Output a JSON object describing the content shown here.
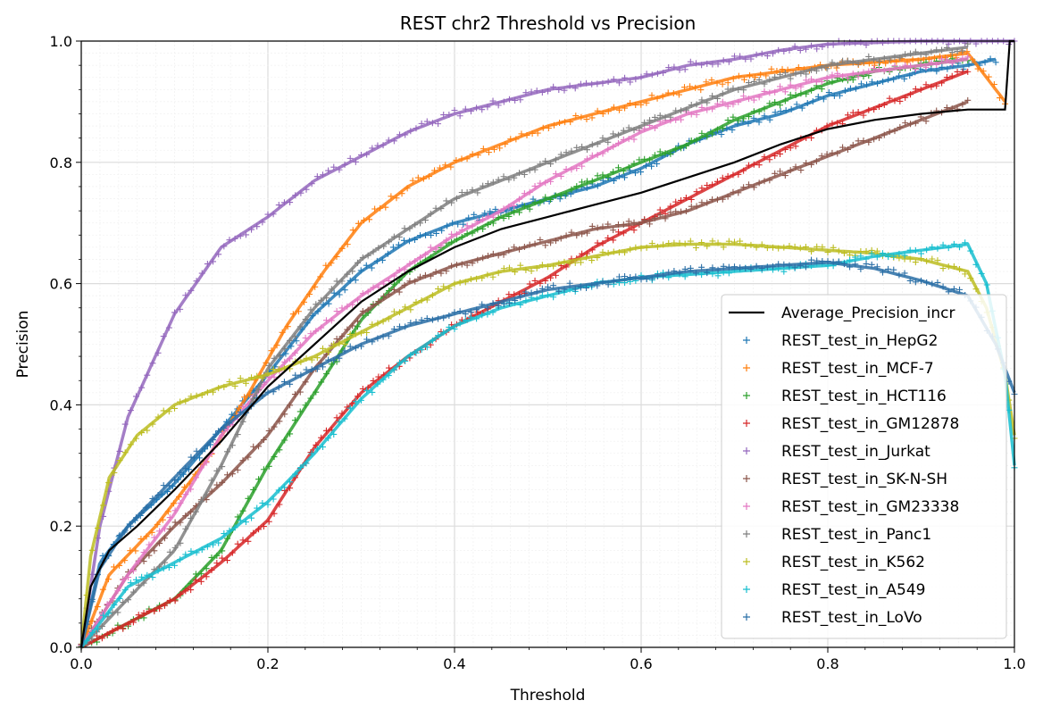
{
  "chart_data": {
    "type": "line",
    "title": "REST chr2 Threshold vs Precision",
    "xlabel": "Threshold",
    "ylabel": "Precision",
    "xlim": [
      0,
      1
    ],
    "ylim": [
      0,
      1
    ],
    "xticks": [
      "0.0",
      "0.2",
      "0.4",
      "0.6",
      "0.8",
      "1.0"
    ],
    "yticks": [
      "0.0",
      "0.2",
      "0.4",
      "0.6",
      "0.8",
      "1.0"
    ],
    "grid": true,
    "legend_position": "lower-right",
    "series": [
      {
        "name": "Average_Precision_incr",
        "color": "#000000",
        "style": "line",
        "x": [
          0,
          0.01,
          0.03,
          0.06,
          0.1,
          0.15,
          0.2,
          0.25,
          0.3,
          0.35,
          0.4,
          0.45,
          0.5,
          0.55,
          0.6,
          0.65,
          0.7,
          0.75,
          0.8,
          0.85,
          0.9,
          0.95,
          0.99,
          0.995,
          1.0
        ],
        "y": [
          0,
          0.1,
          0.16,
          0.2,
          0.26,
          0.34,
          0.43,
          0.5,
          0.57,
          0.62,
          0.66,
          0.69,
          0.71,
          0.73,
          0.75,
          0.775,
          0.8,
          0.83,
          0.855,
          0.87,
          0.88,
          0.887,
          0.887,
          1.0,
          1.0
        ]
      },
      {
        "name": "REST_test_in_HepG2",
        "color": "#1f77b4",
        "style": "marker",
        "x": [
          0,
          0.02,
          0.05,
          0.1,
          0.15,
          0.2,
          0.25,
          0.3,
          0.35,
          0.4,
          0.45,
          0.5,
          0.55,
          0.6,
          0.65,
          0.7,
          0.75,
          0.8,
          0.85,
          0.9,
          0.95,
          0.98
        ],
        "y": [
          0,
          0.14,
          0.2,
          0.27,
          0.36,
          0.45,
          0.55,
          0.62,
          0.67,
          0.7,
          0.72,
          0.74,
          0.76,
          0.79,
          0.83,
          0.86,
          0.88,
          0.91,
          0.93,
          0.95,
          0.96,
          0.97
        ]
      },
      {
        "name": "REST_test_in_MCF-7",
        "color": "#ff7f0e",
        "style": "marker",
        "x": [
          0,
          0.03,
          0.08,
          0.13,
          0.18,
          0.22,
          0.26,
          0.3,
          0.35,
          0.4,
          0.45,
          0.5,
          0.55,
          0.6,
          0.65,
          0.7,
          0.8,
          0.9,
          0.95,
          0.99
        ],
        "y": [
          0,
          0.12,
          0.2,
          0.3,
          0.42,
          0.53,
          0.62,
          0.7,
          0.76,
          0.8,
          0.83,
          0.86,
          0.88,
          0.9,
          0.92,
          0.94,
          0.96,
          0.97,
          0.98,
          0.9
        ]
      },
      {
        "name": "REST_test_in_HCT116",
        "color": "#2ca02c",
        "style": "marker",
        "x": [
          0,
          0.05,
          0.1,
          0.15,
          0.2,
          0.25,
          0.3,
          0.35,
          0.4,
          0.45,
          0.5,
          0.55,
          0.6,
          0.65,
          0.7,
          0.75,
          0.8,
          0.85,
          0.9,
          0.95
        ],
        "y": [
          0,
          0.04,
          0.08,
          0.16,
          0.3,
          0.42,
          0.54,
          0.62,
          0.67,
          0.71,
          0.74,
          0.77,
          0.8,
          0.83,
          0.87,
          0.9,
          0.93,
          0.95,
          0.96,
          0.97
        ]
      },
      {
        "name": "REST_test_in_GM12878",
        "color": "#d62728",
        "style": "marker",
        "x": [
          0,
          0.05,
          0.1,
          0.15,
          0.2,
          0.25,
          0.3,
          0.35,
          0.4,
          0.45,
          0.5,
          0.55,
          0.6,
          0.65,
          0.7,
          0.75,
          0.8,
          0.85,
          0.9,
          0.95
        ],
        "y": [
          0,
          0.04,
          0.08,
          0.14,
          0.21,
          0.33,
          0.42,
          0.48,
          0.53,
          0.57,
          0.61,
          0.66,
          0.7,
          0.74,
          0.78,
          0.82,
          0.86,
          0.89,
          0.92,
          0.95
        ]
      },
      {
        "name": "REST_test_in_Jurkat",
        "color": "#9467bd",
        "style": "marker",
        "x": [
          0,
          0.02,
          0.05,
          0.1,
          0.15,
          0.2,
          0.25,
          0.3,
          0.35,
          0.4,
          0.45,
          0.5,
          0.55,
          0.6,
          0.65,
          0.7,
          0.75,
          0.8,
          0.9,
          1.0
        ],
        "y": [
          0,
          0.2,
          0.38,
          0.55,
          0.66,
          0.71,
          0.77,
          0.81,
          0.85,
          0.88,
          0.9,
          0.92,
          0.93,
          0.94,
          0.96,
          0.97,
          0.985,
          0.995,
          1.0,
          1.0
        ]
      },
      {
        "name": "REST_test_in_SK-N-SH",
        "color": "#8c564b",
        "style": "marker",
        "x": [
          0,
          0.05,
          0.1,
          0.15,
          0.2,
          0.25,
          0.3,
          0.35,
          0.4,
          0.45,
          0.5,
          0.55,
          0.6,
          0.65,
          0.7,
          0.75,
          0.8,
          0.85,
          0.9,
          0.95
        ],
        "y": [
          0,
          0.12,
          0.2,
          0.27,
          0.35,
          0.46,
          0.55,
          0.6,
          0.63,
          0.65,
          0.67,
          0.69,
          0.7,
          0.72,
          0.75,
          0.78,
          0.81,
          0.84,
          0.87,
          0.9
        ]
      },
      {
        "name": "REST_test_in_GM23338",
        "color": "#e377c2",
        "style": "marker",
        "x": [
          0,
          0.05,
          0.1,
          0.15,
          0.2,
          0.25,
          0.3,
          0.35,
          0.4,
          0.45,
          0.5,
          0.55,
          0.6,
          0.65,
          0.7,
          0.75,
          0.8,
          0.85,
          0.9,
          0.95
        ],
        "y": [
          0,
          0.12,
          0.22,
          0.35,
          0.44,
          0.52,
          0.58,
          0.63,
          0.68,
          0.72,
          0.77,
          0.81,
          0.85,
          0.88,
          0.9,
          0.92,
          0.94,
          0.95,
          0.96,
          0.97
        ]
      },
      {
        "name": "REST_test_in_Panc1",
        "color": "#7f7f7f",
        "style": "marker",
        "x": [
          0,
          0.05,
          0.1,
          0.15,
          0.2,
          0.25,
          0.3,
          0.35,
          0.4,
          0.45,
          0.5,
          0.55,
          0.6,
          0.65,
          0.7,
          0.75,
          0.8,
          0.85,
          0.9,
          0.95
        ],
        "y": [
          0,
          0.08,
          0.16,
          0.3,
          0.46,
          0.56,
          0.64,
          0.69,
          0.74,
          0.77,
          0.8,
          0.83,
          0.86,
          0.89,
          0.92,
          0.94,
          0.96,
          0.97,
          0.98,
          0.99
        ]
      },
      {
        "name": "REST_test_in_K562",
        "color": "#bcbd22",
        "style": "marker",
        "x": [
          0,
          0.01,
          0.03,
          0.06,
          0.1,
          0.15,
          0.2,
          0.25,
          0.3,
          0.35,
          0.4,
          0.45,
          0.5,
          0.55,
          0.6,
          0.65,
          0.7,
          0.75,
          0.8,
          0.85,
          0.9,
          0.95,
          0.97,
          0.99,
          1.0
        ],
        "y": [
          0,
          0.15,
          0.28,
          0.35,
          0.4,
          0.43,
          0.45,
          0.48,
          0.52,
          0.56,
          0.6,
          0.62,
          0.63,
          0.645,
          0.66,
          0.665,
          0.665,
          0.66,
          0.655,
          0.65,
          0.64,
          0.62,
          0.56,
          0.45,
          0.35
        ]
      },
      {
        "name": "REST_test_in_A549",
        "color": "#17becf",
        "style": "marker",
        "x": [
          0,
          0.05,
          0.1,
          0.15,
          0.2,
          0.25,
          0.3,
          0.35,
          0.4,
          0.45,
          0.5,
          0.55,
          0.6,
          0.65,
          0.7,
          0.75,
          0.8,
          0.85,
          0.9,
          0.95,
          0.97,
          0.99,
          1.0
        ],
        "y": [
          0,
          0.1,
          0.14,
          0.18,
          0.24,
          0.32,
          0.41,
          0.48,
          0.53,
          0.56,
          0.58,
          0.6,
          0.61,
          0.615,
          0.62,
          0.625,
          0.63,
          0.645,
          0.655,
          0.665,
          0.6,
          0.45,
          0.3
        ]
      },
      {
        "name": "REST_test_in_LoVo",
        "color": "#2a6fa6",
        "style": "marker",
        "x": [
          0,
          0.02,
          0.05,
          0.1,
          0.15,
          0.2,
          0.25,
          0.3,
          0.35,
          0.4,
          0.45,
          0.5,
          0.55,
          0.6,
          0.65,
          0.7,
          0.75,
          0.8,
          0.85,
          0.9,
          0.95,
          0.98,
          1.0
        ],
        "y": [
          0,
          0.13,
          0.2,
          0.28,
          0.36,
          0.42,
          0.46,
          0.5,
          0.53,
          0.55,
          0.57,
          0.59,
          0.6,
          0.61,
          0.62,
          0.625,
          0.63,
          0.635,
          0.625,
          0.605,
          0.58,
          0.5,
          0.42
        ]
      }
    ]
  }
}
